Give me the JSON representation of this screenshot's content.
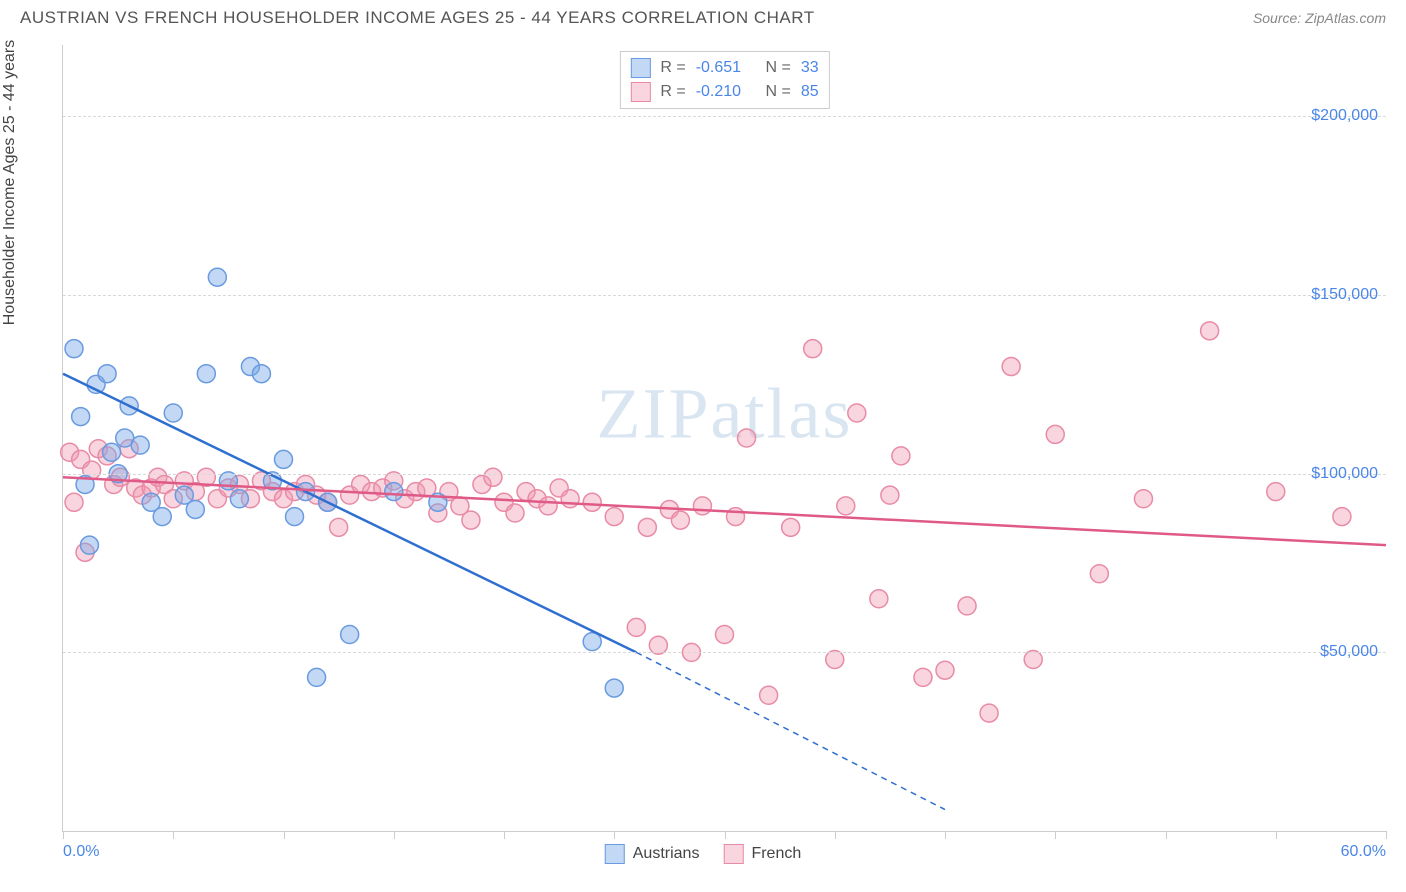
{
  "title": "AUSTRIAN VS FRENCH HOUSEHOLDER INCOME AGES 25 - 44 YEARS CORRELATION CHART",
  "source": "Source: ZipAtlas.com",
  "watermark": "ZIPatlas",
  "ylabel": "Householder Income Ages 25 - 44 years",
  "chart": {
    "type": "scatter",
    "background_color": "#ffffff",
    "grid_color": "#d8d8d8",
    "border_color": "#cccccc",
    "xlim": [
      0,
      60
    ],
    "ylim": [
      0,
      220000
    ],
    "yticks": [
      50000,
      100000,
      150000,
      200000
    ],
    "ytick_labels": [
      "$50,000",
      "$100,000",
      "$150,000",
      "$200,000"
    ],
    "xtick_positions": [
      0,
      5,
      10,
      15,
      20,
      25,
      30,
      35,
      40,
      45,
      50,
      55,
      60
    ],
    "xtick_labels": {
      "0": "0.0%",
      "60": "60.0%"
    },
    "marker_radius": 9,
    "marker_stroke_width": 1.5,
    "line_width": 2.5,
    "series": [
      {
        "name": "Austrians",
        "key": "austrians",
        "color_fill": "rgba(122,168,230,0.45)",
        "color_stroke": "#6a9be0",
        "line_color": "#2f6fd0",
        "R": "-0.651",
        "N": "33",
        "trend": {
          "x1": 0,
          "y1": 128000,
          "x2": 26,
          "y2": 50000,
          "x2_ext": 40,
          "y2_ext": 6000
        },
        "points": [
          [
            0.5,
            135000
          ],
          [
            0.8,
            116000
          ],
          [
            1.0,
            97000
          ],
          [
            1.2,
            80000
          ],
          [
            1.5,
            125000
          ],
          [
            2.0,
            128000
          ],
          [
            2.2,
            106000
          ],
          [
            2.5,
            100000
          ],
          [
            2.8,
            110000
          ],
          [
            3.0,
            119000
          ],
          [
            3.5,
            108000
          ],
          [
            4.0,
            92000
          ],
          [
            4.5,
            88000
          ],
          [
            5.0,
            117000
          ],
          [
            5.5,
            94000
          ],
          [
            6.0,
            90000
          ],
          [
            6.5,
            128000
          ],
          [
            7.0,
            155000
          ],
          [
            7.5,
            98000
          ],
          [
            8.0,
            93000
          ],
          [
            8.5,
            130000
          ],
          [
            9.0,
            128000
          ],
          [
            9.5,
            98000
          ],
          [
            10.0,
            104000
          ],
          [
            10.5,
            88000
          ],
          [
            11.0,
            95000
          ],
          [
            11.5,
            43000
          ],
          [
            12.0,
            92000
          ],
          [
            13.0,
            55000
          ],
          [
            15.0,
            95000
          ],
          [
            17.0,
            92000
          ],
          [
            24.0,
            53000
          ],
          [
            25.0,
            40000
          ]
        ]
      },
      {
        "name": "French",
        "key": "french",
        "color_fill": "rgba(240,150,175,0.40)",
        "color_stroke": "#e88ba6",
        "line_color": "#e05a88",
        "R": "-0.210",
        "N": "85",
        "trend": {
          "x1": 0,
          "y1": 99000,
          "x2": 60,
          "y2": 80000
        },
        "points": [
          [
            0.3,
            106000
          ],
          [
            0.5,
            92000
          ],
          [
            0.8,
            104000
          ],
          [
            1.0,
            78000
          ],
          [
            1.3,
            101000
          ],
          [
            1.6,
            107000
          ],
          [
            2.0,
            105000
          ],
          [
            2.3,
            97000
          ],
          [
            2.6,
            99000
          ],
          [
            3.0,
            107000
          ],
          [
            3.3,
            96000
          ],
          [
            3.6,
            94000
          ],
          [
            4.0,
            96000
          ],
          [
            4.3,
            99000
          ],
          [
            4.6,
            97000
          ],
          [
            5.0,
            93000
          ],
          [
            5.5,
            98000
          ],
          [
            6.0,
            95000
          ],
          [
            6.5,
            99000
          ],
          [
            7.0,
            93000
          ],
          [
            7.5,
            96000
          ],
          [
            8.0,
            97000
          ],
          [
            8.5,
            93000
          ],
          [
            9.0,
            98000
          ],
          [
            9.5,
            95000
          ],
          [
            10.0,
            93000
          ],
          [
            10.5,
            95000
          ],
          [
            11.0,
            97000
          ],
          [
            11.5,
            94000
          ],
          [
            12.0,
            92000
          ],
          [
            12.5,
            85000
          ],
          [
            13.0,
            94000
          ],
          [
            13.5,
            97000
          ],
          [
            14.0,
            95000
          ],
          [
            14.5,
            96000
          ],
          [
            15.0,
            98000
          ],
          [
            15.5,
            93000
          ],
          [
            16.0,
            95000
          ],
          [
            16.5,
            96000
          ],
          [
            17.0,
            89000
          ],
          [
            17.5,
            95000
          ],
          [
            18.0,
            91000
          ],
          [
            18.5,
            87000
          ],
          [
            19.0,
            97000
          ],
          [
            19.5,
            99000
          ],
          [
            20.0,
            92000
          ],
          [
            20.5,
            89000
          ],
          [
            21.0,
            95000
          ],
          [
            21.5,
            93000
          ],
          [
            22.0,
            91000
          ],
          [
            22.5,
            96000
          ],
          [
            23.0,
            93000
          ],
          [
            24.0,
            92000
          ],
          [
            25.0,
            88000
          ],
          [
            26.0,
            57000
          ],
          [
            26.5,
            85000
          ],
          [
            27.0,
            52000
          ],
          [
            27.5,
            90000
          ],
          [
            28.0,
            87000
          ],
          [
            28.5,
            50000
          ],
          [
            29.0,
            91000
          ],
          [
            30.0,
            55000
          ],
          [
            30.5,
            88000
          ],
          [
            31.0,
            110000
          ],
          [
            32.0,
            38000
          ],
          [
            33.0,
            85000
          ],
          [
            34.0,
            135000
          ],
          [
            35.0,
            48000
          ],
          [
            35.5,
            91000
          ],
          [
            36.0,
            117000
          ],
          [
            37.0,
            65000
          ],
          [
            37.5,
            94000
          ],
          [
            38.0,
            105000
          ],
          [
            39.0,
            43000
          ],
          [
            40.0,
            45000
          ],
          [
            41.0,
            63000
          ],
          [
            42.0,
            33000
          ],
          [
            43.0,
            130000
          ],
          [
            44.0,
            48000
          ],
          [
            45.0,
            111000
          ],
          [
            47.0,
            72000
          ],
          [
            49.0,
            93000
          ],
          [
            52.0,
            140000
          ],
          [
            55.0,
            95000
          ],
          [
            58.0,
            88000
          ]
        ]
      }
    ]
  },
  "legend_bottom": [
    {
      "label": "Austrians",
      "fill": "rgba(122,168,230,0.45)",
      "stroke": "#6a9be0"
    },
    {
      "label": "French",
      "fill": "rgba(240,150,175,0.40)",
      "stroke": "#e88ba6"
    }
  ],
  "tick_label_color": "#4a86e8"
}
